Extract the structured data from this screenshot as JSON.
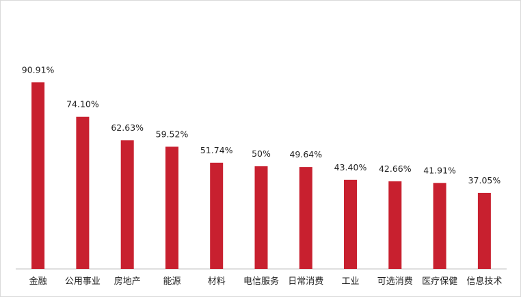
{
  "chart_data": {
    "type": "bar",
    "categories": [
      "金融",
      "公用事业",
      "房地产",
      "能源",
      "材料",
      "电信服务",
      "日常消费",
      "工业",
      "可选消费",
      "医疗保健",
      "信息技术"
    ],
    "values": [
      90.91,
      74.1,
      62.63,
      59.52,
      51.74,
      50,
      49.64,
      43.4,
      42.66,
      41.91,
      37.05
    ],
    "value_labels": [
      "90.91%",
      "74.10%",
      "62.63%",
      "59.52%",
      "51.74%",
      "50%",
      "49.64%",
      "43.40%",
      "42.66%",
      "41.91%",
      "37.05%"
    ],
    "ylim": [
      0,
      100
    ],
    "grid": false,
    "legend": "none",
    "bar_color": "#c8202f",
    "axis_color": "#bfbfbf"
  }
}
